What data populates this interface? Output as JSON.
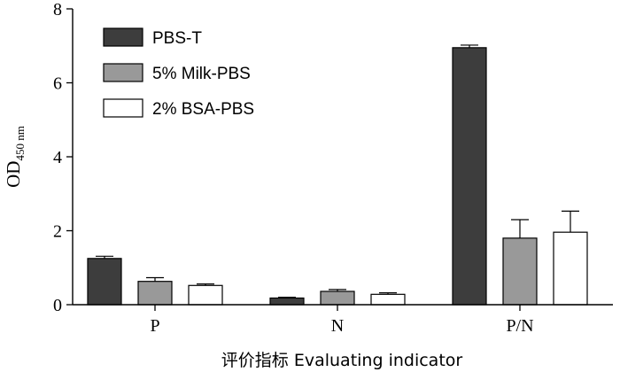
{
  "chart_data": {
    "type": "bar",
    "categories": [
      "P",
      "N",
      "P/N"
    ],
    "series": [
      {
        "name": "PBS-T",
        "color": "#3d3d3d",
        "values": [
          1.25,
          0.18,
          6.95
        ],
        "errors": [
          0.06,
          0.02,
          0.07
        ]
      },
      {
        "name": "5% Milk-PBS",
        "color": "#999999",
        "values": [
          0.63,
          0.36,
          1.8
        ],
        "errors": [
          0.1,
          0.05,
          0.5
        ]
      },
      {
        "name": "2% BSA-PBS",
        "color": "#ffffff",
        "values": [
          0.52,
          0.28,
          1.96
        ],
        "errors": [
          0.04,
          0.04,
          0.57
        ]
      }
    ],
    "ylabel": "OD",
    "ylabel_sub": "450 nm",
    "xlabel": "评价指标  Evaluating indicator",
    "yticks": [
      0,
      2,
      4,
      6,
      8
    ],
    "ylim": [
      0,
      8
    ],
    "legend_position": "top-left",
    "grid": false
  }
}
